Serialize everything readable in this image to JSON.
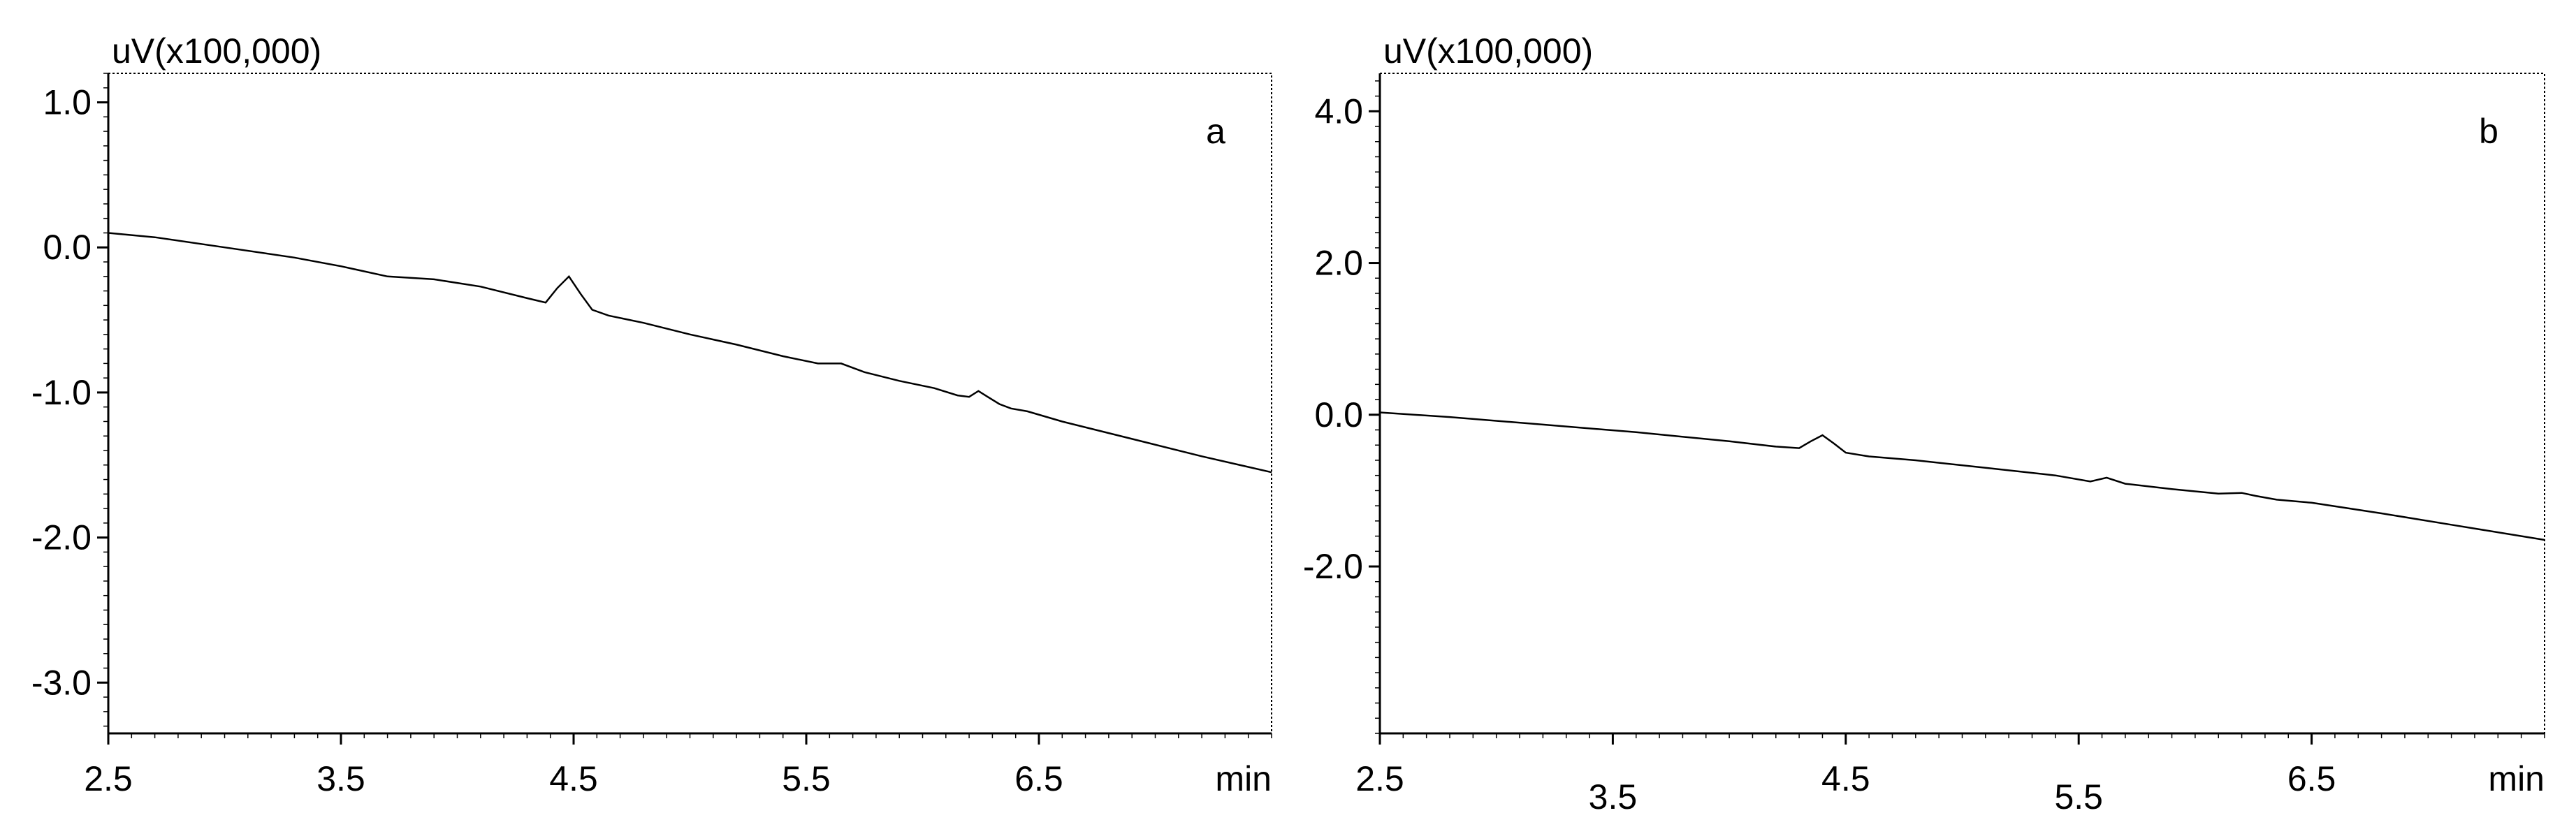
{
  "chart_data": [
    {
      "type": "line",
      "panel_label": "a",
      "y_unit_label": "uV(x100,000)",
      "x_unit_label": "min",
      "x_ticks": [
        "2.5",
        "3.5",
        "4.5",
        "5.5",
        "6.5"
      ],
      "y_ticks": [
        "1.0",
        "0.0",
        "-1.0",
        "-2.0",
        "-3.0"
      ],
      "xlim": [
        2.5,
        7.5
      ],
      "ylim": [
        -3.35,
        1.2
      ],
      "grid": false,
      "series": [
        {
          "x": [
            2.5,
            2.7,
            3.0,
            3.3,
            3.5,
            3.7,
            3.9,
            4.1,
            4.3,
            4.38,
            4.43,
            4.48,
            4.53,
            4.58,
            4.65,
            4.8,
            5.0,
            5.2,
            5.4,
            5.55,
            5.65,
            5.75,
            5.9,
            6.05,
            6.15,
            6.2,
            6.24,
            6.28,
            6.33,
            6.38,
            6.45,
            6.6,
            6.9,
            7.2,
            7.5
          ],
          "y": [
            0.1,
            0.07,
            0.0,
            -0.07,
            -0.13,
            -0.2,
            -0.22,
            -0.27,
            -0.35,
            -0.38,
            -0.28,
            -0.2,
            -0.32,
            -0.43,
            -0.47,
            -0.52,
            -0.6,
            -0.67,
            -0.75,
            -0.8,
            -0.8,
            -0.86,
            -0.92,
            -0.97,
            -1.02,
            -1.03,
            -0.99,
            -1.03,
            -1.08,
            -1.11,
            -1.13,
            -1.2,
            -1.32,
            -1.44,
            -1.55
          ]
        }
      ]
    },
    {
      "type": "line",
      "panel_label": "b",
      "y_unit_label": "uV(x100,000)",
      "x_unit_label": "min",
      "x_ticks": [
        "2.5",
        "3.5",
        "4.5",
        "5.5",
        "6.5"
      ],
      "y_ticks": [
        "4.0",
        "2.0",
        "0.0",
        "-2.0"
      ],
      "xlim": [
        2.5,
        7.5
      ],
      "ylim": [
        -4.2,
        4.5
      ],
      "grid": false,
      "series": [
        {
          "x": [
            2.5,
            2.8,
            3.2,
            3.6,
            4.0,
            4.2,
            4.3,
            4.35,
            4.4,
            4.45,
            4.5,
            4.6,
            4.8,
            5.1,
            5.4,
            5.55,
            5.62,
            5.7,
            5.9,
            6.1,
            6.2,
            6.26,
            6.35,
            6.5,
            6.8,
            7.1,
            7.5
          ],
          "y": [
            0.03,
            -0.03,
            -0.13,
            -0.23,
            -0.35,
            -0.42,
            -0.44,
            -0.35,
            -0.27,
            -0.38,
            -0.5,
            -0.55,
            -0.6,
            -0.7,
            -0.8,
            -0.88,
            -0.83,
            -0.91,
            -0.98,
            -1.04,
            -1.03,
            -1.07,
            -1.12,
            -1.16,
            -1.3,
            -1.45,
            -1.65
          ]
        }
      ]
    }
  ]
}
